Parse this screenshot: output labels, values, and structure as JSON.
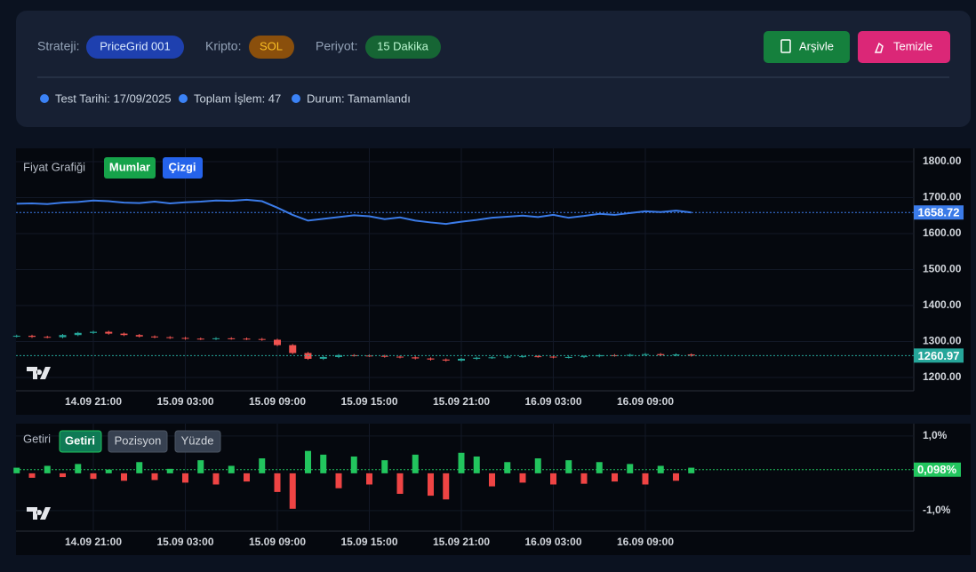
{
  "header": {
    "strategy_label": "Strateji:",
    "strategy": "PriceGrid 001",
    "crypto_label": "Kripto:",
    "crypto": "SOL",
    "period_label": "Periyot:",
    "period": "15 Dakika",
    "buttons": [
      "Arşivle",
      "Temizle"
    ],
    "stats": [
      "Test Tarihi: 17/09/2025",
      "Toplam İşlem: 47",
      "Durum: Tamamlandı"
    ]
  },
  "chart_data": [
    {
      "type": "line",
      "title": "Fiyat Grafiği",
      "buttons": [
        "Mumlar",
        "Çizgi"
      ],
      "categories": [
        null,
        null,
        null,
        null,
        null,
        "14.09 21:00",
        null,
        null,
        null,
        null,
        null,
        "15.09 03:00",
        null,
        null,
        null,
        null,
        null,
        "15.09 09:00",
        null,
        null,
        null,
        null,
        null,
        "15.09 15:00",
        null,
        null,
        null,
        null,
        null,
        "15.09 21:00",
        null,
        null,
        null,
        null,
        null,
        "16.09 03:00",
        null,
        null,
        null,
        null,
        null,
        "16.09 09:00",
        null,
        null,
        null
      ],
      "series": [
        {
          "type": "line",
          "color": "#3b7be8",
          "values": [
            1683,
            1684,
            1682,
            1686,
            1688,
            1692,
            1690,
            1686,
            1685,
            1689,
            1684,
            1687,
            1689,
            1692,
            1691,
            1694,
            1690,
            1672,
            1652,
            1636,
            1641,
            1646,
            1651,
            1648,
            1640,
            1645,
            1636,
            1631,
            1627,
            1633,
            1638,
            1644,
            1647,
            1650,
            1646,
            1652,
            1644,
            1649,
            1655,
            1652,
            1657,
            1662,
            1660,
            1664,
            1658.72
          ]
        },
        {
          "type": "candlestick",
          "color": "#26a69a",
          "down_color": "#ef5350",
          "open": [
            1314,
            1316,
            1313,
            1312,
            1318,
            1324,
            1327,
            1322,
            1318,
            1314,
            1312,
            1310,
            1308,
            1307,
            1309,
            1308,
            1307,
            1305,
            1290,
            1268,
            1252,
            1257,
            1262,
            1261,
            1260,
            1258,
            1256,
            1253,
            1250,
            1247,
            1252,
            1255,
            1256,
            1258,
            1259,
            1258,
            1256,
            1257,
            1259,
            1262,
            1261,
            1263,
            1265,
            1262,
            1264
          ],
          "high": [
            1319,
            1319,
            1316,
            1321,
            1327,
            1330,
            1330,
            1325,
            1321,
            1317,
            1315,
            1313,
            1311,
            1312,
            1312,
            1311,
            1310,
            1308,
            1293,
            1271,
            1260,
            1265,
            1265,
            1264,
            1263,
            1261,
            1259,
            1256,
            1253,
            1255,
            1258,
            1259,
            1261,
            1262,
            1262,
            1261,
            1260,
            1262,
            1265,
            1265,
            1266,
            1268,
            1268,
            1267,
            1267
          ],
          "low": [
            1311,
            1310,
            1309,
            1309,
            1315,
            1321,
            1319,
            1315,
            1311,
            1309,
            1307,
            1305,
            1304,
            1304,
            1305,
            1304,
            1302,
            1287,
            1265,
            1249,
            1249,
            1254,
            1258,
            1257,
            1255,
            1253,
            1250,
            1247,
            1244,
            1244,
            1249,
            1252,
            1253,
            1255,
            1255,
            1253,
            1253,
            1254,
            1256,
            1258,
            1258,
            1260,
            1259,
            1259,
            1257.97
          ],
          "close": [
            1316,
            1313,
            1312,
            1318,
            1324,
            1327,
            1322,
            1318,
            1314,
            1312,
            1310,
            1308,
            1307,
            1309,
            1308,
            1307,
            1305,
            1290,
            1268,
            1252,
            1257,
            1262,
            1261,
            1260,
            1258,
            1256,
            1253,
            1250,
            1247,
            1252,
            1255,
            1256,
            1258,
            1259,
            1258,
            1256,
            1257,
            1259,
            1262,
            1261,
            1263,
            1265,
            1262,
            1264,
            1260.97
          ]
        }
      ],
      "ylim": [
        1163,
        1837
      ],
      "yticks": [
        {
          "value": 1800,
          "label": "1800.00"
        },
        {
          "value": 1700,
          "label": "1700.00"
        },
        {
          "value": 1600,
          "label": "1600.00"
        },
        {
          "value": 1500,
          "label": "1500.00"
        },
        {
          "value": 1400,
          "label": "1400.00"
        },
        {
          "value": 1300,
          "label": "1300.00"
        },
        {
          "value": 1200,
          "label": "1200.00"
        }
      ],
      "grid": true
    },
    {
      "type": "bar",
      "title": "Getiri",
      "buttons": [
        "Getiri",
        "Pozisyon",
        "Yüzde"
      ],
      "categories": [
        null,
        null,
        null,
        null,
        null,
        "14.09 21:00",
        null,
        null,
        null,
        null,
        null,
        "15.09 03:00",
        null,
        null,
        null,
        null,
        null,
        "15.09 09:00",
        null,
        null,
        null,
        null,
        null,
        "15.09 15:00",
        null,
        null,
        null,
        null,
        null,
        "15.09 21:00",
        null,
        null,
        null,
        null,
        null,
        "16.09 03:00",
        null,
        null,
        null,
        null,
        null,
        "16.09 09:00",
        null,
        null,
        null
      ],
      "values": [
        0.15,
        -0.12,
        0.2,
        -0.1,
        0.25,
        -0.15,
        0.1,
        -0.2,
        0.3,
        -0.18,
        0.12,
        -0.25,
        0.35,
        -0.3,
        0.2,
        -0.22,
        0.4,
        -0.5,
        -0.95,
        0.6,
        0.5,
        -0.4,
        0.45,
        -0.3,
        0.35,
        -0.55,
        0.5,
        -0.6,
        -0.7,
        0.55,
        0.45,
        -0.35,
        0.3,
        -0.25,
        0.4,
        -0.3,
        0.35,
        -0.28,
        0.3,
        -0.22,
        0.25,
        -0.3,
        0.2,
        -0.2,
        0.15
      ],
      "color": "#22c55e",
      "down_color": "#ef4444",
      "current": {
        "value": 0.098,
        "label": "0,098%"
      },
      "ylim": [
        -1.55,
        1.33
      ],
      "yticks": [
        {
          "value": 1,
          "label": "1,0%"
        },
        {
          "value": -1,
          "label": "-1,0%"
        }
      ],
      "grid": true
    }
  ]
}
